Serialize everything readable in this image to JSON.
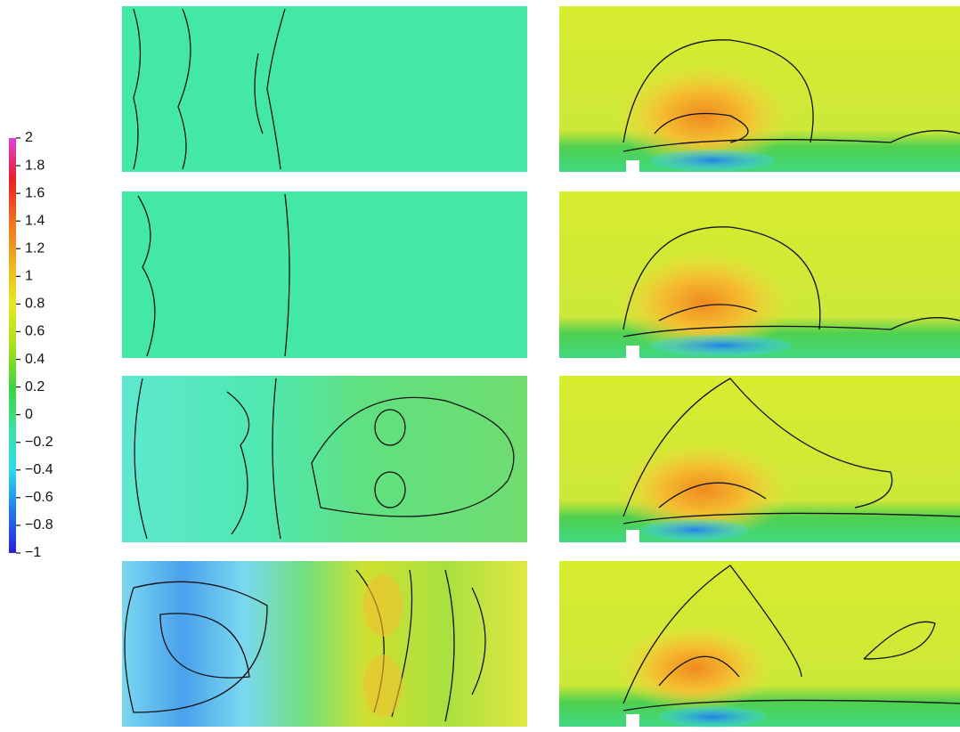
{
  "chart_data": {
    "type": "contour",
    "colorbar": {
      "lim": [
        -1,
        2
      ],
      "ticks": [
        2,
        1.8,
        1.6,
        1.4,
        1.2,
        1,
        0.8,
        0.6,
        0.4,
        0.2,
        0,
        {
          "value": -0.2,
          "label": "−0.2"
        },
        {
          "value": -0.4,
          "label": "−0.4"
        },
        {
          "value": -0.6,
          "label": "−0.6"
        },
        {
          "value": -0.8,
          "label": "−0.8"
        },
        {
          "value": -1,
          "label": "−1"
        }
      ],
      "colors": [
        "#2a1fd6",
        "#1f7ae8",
        "#2fd8f0",
        "#3de0a0",
        "#3cd43c",
        "#a8e020",
        "#e8e820",
        "#f0b020",
        "#f07020",
        "#e82020",
        "#e040e0"
      ]
    }
  }
}
